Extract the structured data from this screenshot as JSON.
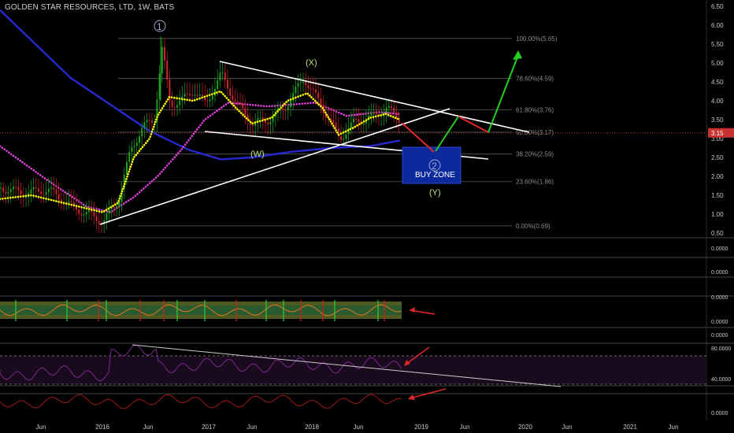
{
  "header": {
    "title": "GOLDEN STAR RESOURCES, LTD, 1W, BATS"
  },
  "colors": {
    "background": "#000000",
    "price_axis_text": "#c8c8c8",
    "trendline": "#ffffff",
    "sma_fast": "#ffff00",
    "sma_mid": "#e040e0",
    "sma_slow": "#2828d0",
    "candle_up": "#22a022",
    "candle_down": "#c82828",
    "fib_line": "#5a5a5a",
    "fib_text": "#8a8a8a",
    "wave_label": "#b9e37a",
    "current_price_bg": "#c83232",
    "buy_zone_bg": "#0c2a9c",
    "arrow_red": "#e02828",
    "arrow_green": "#22d022",
    "osc_fill": "#4d5a20",
    "rsi_line": "#7a2a90",
    "lower_line": "#a01818"
  },
  "chart_data": {
    "type": "line",
    "title": "GOLDEN STAR RESOURCES, LTD, 1W, BATS",
    "xlabel": "",
    "ylabel": "",
    "ylim": [
      0.35,
      6.6
    ],
    "grid": false,
    "x_ticks": [
      "Jun",
      "2016",
      "Jun",
      "2017",
      "Jun",
      "2018",
      "Jun",
      "2019",
      "Jun",
      "2020",
      "Jun",
      "2021",
      "Jun"
    ],
    "y_ticks": [
      "6.50",
      "6.00",
      "5.50",
      "5.00",
      "4.50",
      "4.00",
      "3.50",
      "3.00",
      "2.50",
      "2.00",
      "1.50",
      "1.00",
      "0.50"
    ],
    "current_price": "3.15",
    "fib_levels": [
      {
        "label": "100.00%(5.65)",
        "value": 5.65
      },
      {
        "label": "78.60%(4.59)",
        "value": 4.59
      },
      {
        "label": "61.80%(3.76)",
        "value": 3.76
      },
      {
        "label": "50.00%(3.17)",
        "value": 3.17
      },
      {
        "label": "38.20%(2.59)",
        "value": 2.59
      },
      {
        "label": "23.60%(1.86)",
        "value": 1.86
      },
      {
        "label": "0.00%(0.69)",
        "value": 0.69
      }
    ],
    "wave_labels": [
      "1",
      "(X)",
      "(W)",
      "2",
      "(Y)"
    ],
    "annotation": "BUY ZONE",
    "price_series": [
      {
        "x": 0,
        "y": 1.7
      },
      {
        "x": 30,
        "y": 1.55
      },
      {
        "x": 60,
        "y": 1.65
      },
      {
        "x": 90,
        "y": 1.2
      },
      {
        "x": 130,
        "y": 0.8
      },
      {
        "x": 150,
        "y": 1.4
      },
      {
        "x": 165,
        "y": 2.7
      },
      {
        "x": 180,
        "y": 3.3
      },
      {
        "x": 195,
        "y": 3.5
      },
      {
        "x": 205,
        "y": 5.4
      },
      {
        "x": 215,
        "y": 3.9
      },
      {
        "x": 230,
        "y": 4.0
      },
      {
        "x": 245,
        "y": 4.3
      },
      {
        "x": 260,
        "y": 3.9
      },
      {
        "x": 280,
        "y": 4.7
      },
      {
        "x": 300,
        "y": 3.9
      },
      {
        "x": 320,
        "y": 3.4
      },
      {
        "x": 340,
        "y": 3.5
      },
      {
        "x": 360,
        "y": 3.8
      },
      {
        "x": 385,
        "y": 4.6
      },
      {
        "x": 400,
        "y": 4.1
      },
      {
        "x": 415,
        "y": 3.6
      },
      {
        "x": 430,
        "y": 3.0
      },
      {
        "x": 450,
        "y": 3.45
      },
      {
        "x": 470,
        "y": 3.55
      },
      {
        "x": 490,
        "y": 3.8
      },
      {
        "x": 508,
        "y": 3.5
      }
    ],
    "series": [
      {
        "values": [
          {
            "x": 0,
            "y": 1.4
          },
          {
            "x": 40,
            "y": 1.5
          },
          {
            "x": 80,
            "y": 1.3
          },
          {
            "x": 130,
            "y": 1.05
          },
          {
            "x": 150,
            "y": 1.3
          },
          {
            "x": 170,
            "y": 2.5
          },
          {
            "x": 190,
            "y": 3.0
          },
          {
            "x": 200,
            "y": 3.6
          },
          {
            "x": 215,
            "y": 4.1
          },
          {
            "x": 245,
            "y": 4.0
          },
          {
            "x": 280,
            "y": 4.25
          },
          {
            "x": 300,
            "y": 3.8
          },
          {
            "x": 320,
            "y": 3.4
          },
          {
            "x": 345,
            "y": 3.55
          },
          {
            "x": 365,
            "y": 4.0
          },
          {
            "x": 390,
            "y": 4.2
          },
          {
            "x": 410,
            "y": 3.8
          },
          {
            "x": 430,
            "y": 3.1
          },
          {
            "x": 450,
            "y": 3.3
          },
          {
            "x": 470,
            "y": 3.55
          },
          {
            "x": 490,
            "y": 3.65
          },
          {
            "x": 508,
            "y": 3.5
          }
        ]
      },
      {
        "values": [
          {
            "x": 0,
            "y": 2.8
          },
          {
            "x": 60,
            "y": 1.9
          },
          {
            "x": 110,
            "y": 1.2
          },
          {
            "x": 140,
            "y": 1.05
          },
          {
            "x": 170,
            "y": 1.45
          },
          {
            "x": 200,
            "y": 2.0
          },
          {
            "x": 230,
            "y": 2.7
          },
          {
            "x": 260,
            "y": 3.5
          },
          {
            "x": 290,
            "y": 3.95
          },
          {
            "x": 340,
            "y": 3.85
          },
          {
            "x": 400,
            "y": 3.95
          },
          {
            "x": 440,
            "y": 3.6
          },
          {
            "x": 480,
            "y": 3.7
          },
          {
            "x": 508,
            "y": 3.65
          }
        ]
      },
      {
        "values": [
          {
            "x": 0,
            "y": 6.4
          },
          {
            "x": 40,
            "y": 5.6
          },
          {
            "x": 90,
            "y": 4.6
          },
          {
            "x": 140,
            "y": 3.9
          },
          {
            "x": 190,
            "y": 3.2
          },
          {
            "x": 240,
            "y": 2.7
          },
          {
            "x": 280,
            "y": 2.45
          },
          {
            "x": 320,
            "y": 2.5
          },
          {
            "x": 370,
            "y": 2.65
          },
          {
            "x": 420,
            "y": 2.75
          },
          {
            "x": 470,
            "y": 2.8
          },
          {
            "x": 508,
            "y": 2.95
          }
        ]
      }
    ],
    "panels": [
      {
        "label": "0.0000"
      },
      {
        "label": "0.0000"
      },
      {
        "label_top": "0.0000",
        "label_bottom": "0.0000"
      },
      {
        "label_top": "0.0000",
        "label_80": "80.0000",
        "label_40": "40.0000"
      },
      {
        "label": "0.0000"
      }
    ]
  }
}
